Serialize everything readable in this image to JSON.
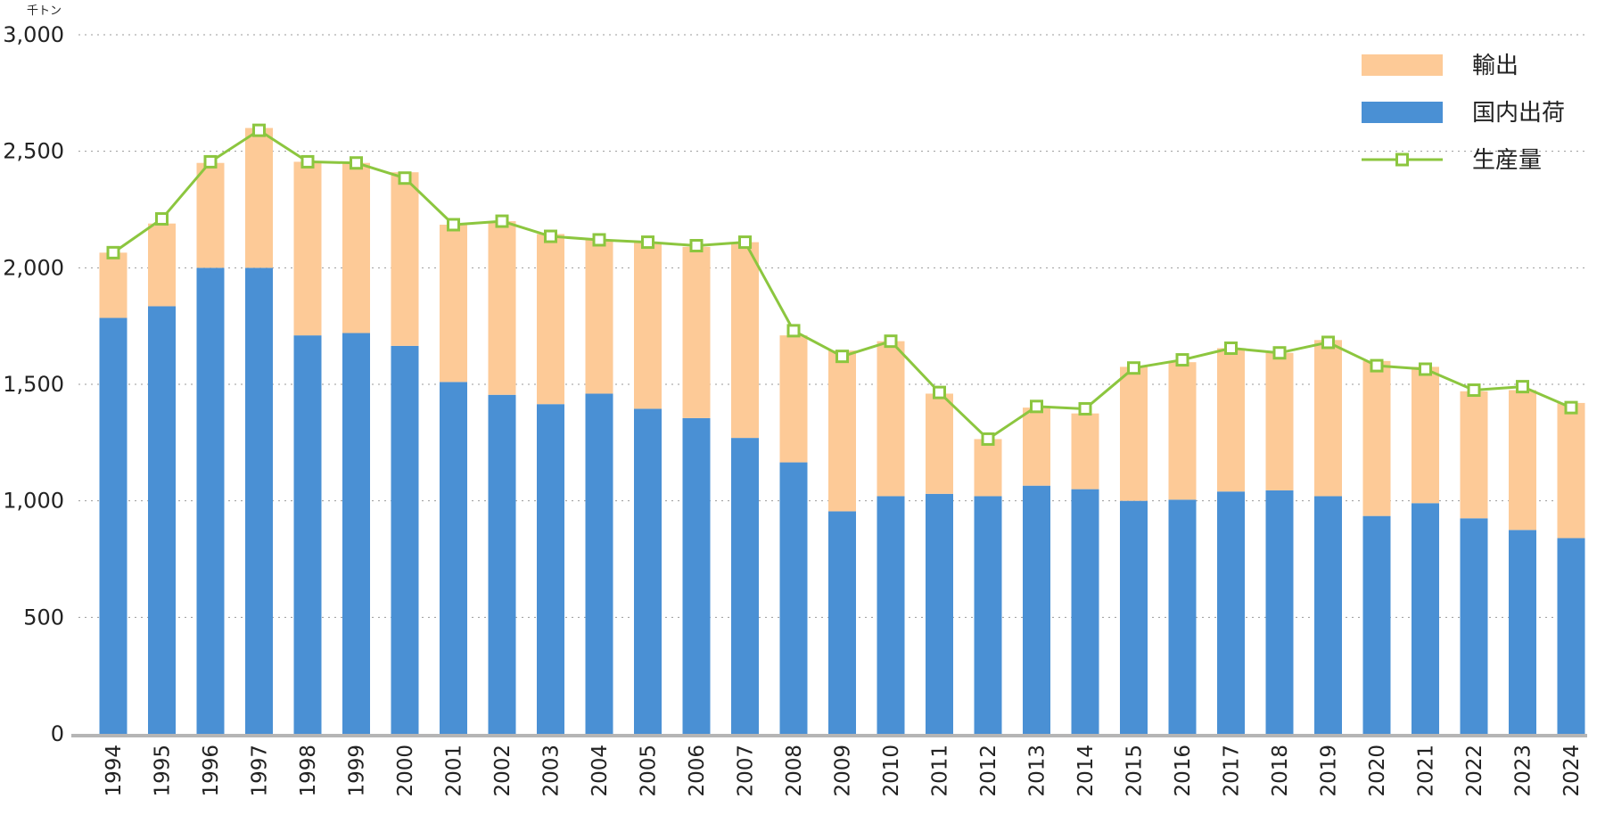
{
  "chart_data": {
    "type": "bar",
    "title": "",
    "xlabel": "",
    "ylabel": "",
    "unit": "千トン",
    "ylim": [
      0,
      3000
    ],
    "yticks": [
      "0",
      "500",
      "1,000",
      "1,500",
      "2,000",
      "2,500",
      "3,000"
    ],
    "ytick_values": [
      0,
      500,
      1000,
      1500,
      2000,
      2500,
      3000
    ],
    "grid": "horizontal dotted",
    "legend_position": "top-right",
    "categories": [
      "1994",
      "1995",
      "1996",
      "1997",
      "1998",
      "1999",
      "2000",
      "2001",
      "2002",
      "2003",
      "2004",
      "2005",
      "2006",
      "2007",
      "2008",
      "2009",
      "2010",
      "2011",
      "2012",
      "2013",
      "2014",
      "2015",
      "2016",
      "2017",
      "2018",
      "2019",
      "2020",
      "2021",
      "2022",
      "2023",
      "2024"
    ],
    "series": [
      {
        "name": "国内出荷",
        "kind": "bar",
        "stack": "base",
        "color": "#4a90d4",
        "values": [
          1785,
          1835,
          2000,
          2000,
          1710,
          1720,
          1665,
          1510,
          1455,
          1415,
          1460,
          1395,
          1355,
          1270,
          1165,
          955,
          1020,
          1030,
          1020,
          1065,
          1050,
          1000,
          1005,
          1040,
          1045,
          1020,
          935,
          990,
          925,
          875,
          840
        ]
      },
      {
        "name": "輸出",
        "kind": "bar",
        "stack": "top",
        "color": "#fdca97",
        "values": [
          280,
          355,
          450,
          600,
          745,
          730,
          745,
          675,
          745,
          730,
          660,
          715,
          735,
          840,
          545,
          690,
          665,
          430,
          245,
          335,
          325,
          575,
          590,
          615,
          590,
          670,
          665,
          585,
          545,
          600,
          580
        ]
      },
      {
        "name": "生産量",
        "kind": "line",
        "color": "#8cc63f",
        "marker": "square",
        "values": [
          2065,
          2210,
          2455,
          2590,
          2455,
          2450,
          2385,
          2185,
          2200,
          2135,
          2120,
          2110,
          2095,
          2110,
          1730,
          1620,
          1685,
          1465,
          1265,
          1405,
          1395,
          1570,
          1605,
          1655,
          1635,
          1680,
          1580,
          1565,
          1475,
          1490,
          1400
        ]
      }
    ]
  }
}
